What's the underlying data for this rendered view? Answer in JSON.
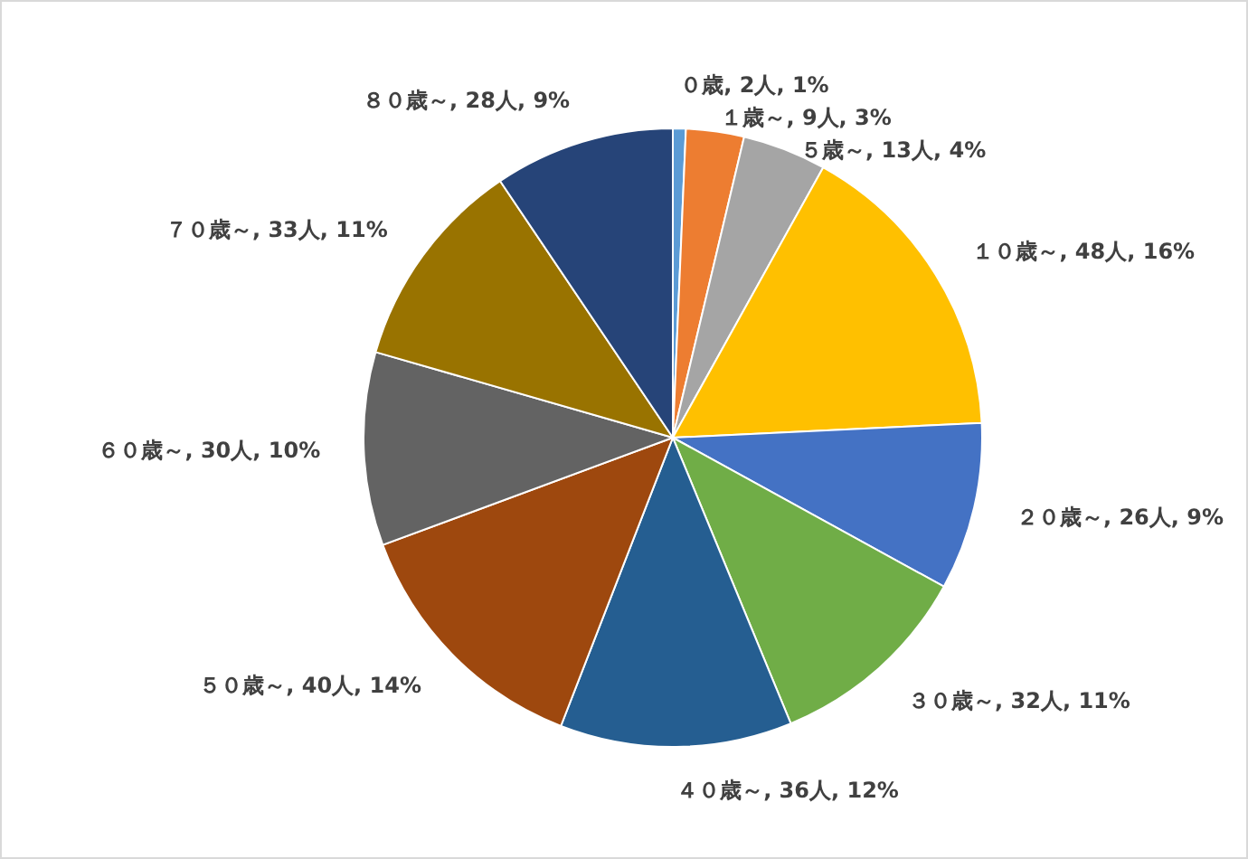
{
  "chart_data": {
    "type": "pie",
    "categories": [
      "０歳",
      "１歳～",
      "５歳～",
      "１０歳～",
      "２０歳～",
      "３０歳～",
      "４０歳～",
      "５０歳～",
      "６０歳～",
      "７０歳～",
      "８０歳～"
    ],
    "values": [
      2,
      9,
      13,
      48,
      26,
      32,
      36,
      40,
      30,
      33,
      28
    ],
    "value_labels": [
      "2人, 1%",
      "9人, 3%",
      "13人, 4%",
      "48人, 16%",
      "26人, 9%",
      "32人, 11%",
      "36人, 12%",
      "40人, 14%",
      "30人, 10%",
      "33人, 11%",
      "28人, 9%"
    ],
    "colors": [
      "#5b9bd5",
      "#ed7d31",
      "#a5a5a5",
      "#ffc000",
      "#4472c4",
      "#70ad47",
      "#255e91",
      "#9e480e",
      "#636363",
      "#997300",
      "#264478"
    ]
  }
}
